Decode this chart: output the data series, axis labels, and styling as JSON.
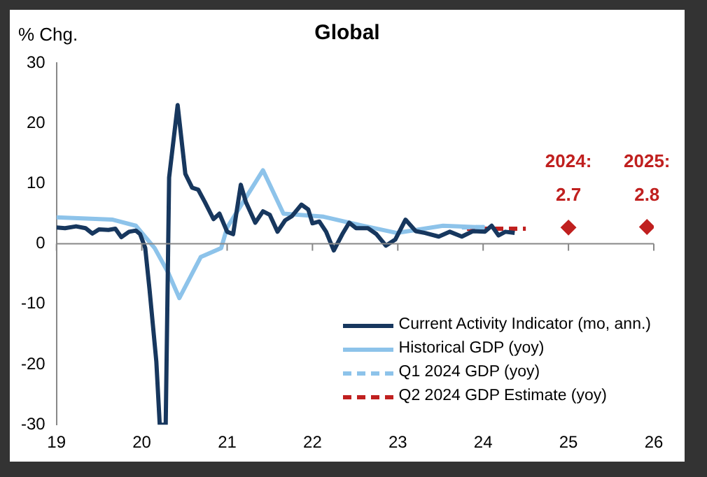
{
  "chart_data": {
    "type": "line",
    "title": "Global",
    "ylabel": "% Chg.",
    "xlim": [
      19,
      26
    ],
    "xticks": [
      19,
      20,
      21,
      22,
      23,
      24,
      25,
      26
    ],
    "ylim": [
      -30,
      30
    ],
    "yticks": [
      -30,
      -20,
      -10,
      0,
      10,
      20,
      30
    ],
    "legend": "bottom right",
    "annotations": [
      "2024:",
      "2025:"
    ],
    "series": [
      {
        "name": "Current Activity Indicator (mo, ann.)",
        "type": "line",
        "line_style": "solid",
        "color": "#17375e",
        "x": [
          19.0,
          19.1,
          19.23,
          19.34,
          19.42,
          19.5,
          19.61,
          19.69,
          19.76,
          19.85,
          19.93,
          19.98,
          20.04,
          20.09,
          20.17,
          20.21,
          20.28,
          20.32,
          20.42,
          20.51,
          20.59,
          20.66,
          20.74,
          20.84,
          20.91,
          21.0,
          21.07,
          21.16,
          21.22,
          21.33,
          21.42,
          21.5,
          21.59,
          21.68,
          21.76,
          21.87,
          21.95,
          22.0,
          22.08,
          22.16,
          22.25,
          22.35,
          22.43,
          22.51,
          22.65,
          22.75,
          22.86,
          22.97,
          23.09,
          23.21,
          23.32,
          23.48,
          23.61,
          23.75,
          23.88,
          24.02,
          24.1,
          24.18,
          24.26,
          24.37
        ],
        "values": [
          2.7,
          2.6,
          2.9,
          2.6,
          1.7,
          2.4,
          2.3,
          2.5,
          1.1,
          2.0,
          2.2,
          1.6,
          -0.7,
          -7.5,
          -19.5,
          -30,
          -30,
          11,
          23,
          11.6,
          9.3,
          9,
          6.9,
          4.1,
          5,
          2,
          1.6,
          9.8,
          6.9,
          3.5,
          5.4,
          4.8,
          2,
          3.9,
          4.6,
          6.5,
          5.7,
          3.4,
          3.7,
          2,
          -1.1,
          1.6,
          3.5,
          2.6,
          2.6,
          1.6,
          -0.3,
          0.7,
          4,
          2.1,
          1.8,
          1.2,
          2,
          1.2,
          2.1,
          2,
          3,
          1.4,
          2,
          1.8
        ]
      },
      {
        "name": "Historical GDP (yoy)",
        "type": "line",
        "line_style": "solid",
        "color": "#8dc3ea",
        "x": [
          19.0,
          19.66,
          19.93,
          20.15,
          20.31,
          20.44,
          20.69,
          20.93,
          21.0,
          21.42,
          21.66,
          22.13,
          22.56,
          22.99,
          23.53,
          24.02
        ],
        "values": [
          4.4,
          4.0,
          3.0,
          -0.7,
          -4.8,
          -9.0,
          -2.2,
          -0.7,
          2.7,
          12.2,
          5,
          4.5,
          3.1,
          1.8,
          3.0,
          2.7
        ]
      },
      {
        "name": "Q1 2024 GDP (yoy)",
        "type": "line",
        "line_style": "dashed",
        "color": "#8dc3ea",
        "x": [
          23.75,
          24.02
        ],
        "values": [
          2.7,
          2.8
        ]
      },
      {
        "name": "Q2 2024 GDP Estimate (yoy)",
        "type": "line",
        "line_style": "dashed",
        "color": "#c0201f",
        "x": [
          23.81,
          24.5
        ],
        "values": [
          2.5,
          2.5
        ]
      },
      {
        "type": "scatter",
        "marker": "diamond",
        "color": "#c0201f",
        "x": [
          25.0,
          25.92
        ],
        "values": [
          2.7,
          2.8
        ],
        "value_labels": [
          "2.7",
          "2.8"
        ]
      }
    ]
  }
}
